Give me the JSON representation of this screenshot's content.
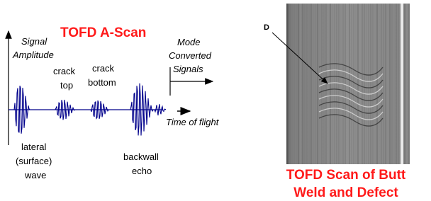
{
  "a_scan": {
    "title": "TOFD A-Scan",
    "y_axis_label": [
      "Signal",
      "Amplitude"
    ],
    "x_axis_label": "Time of flight",
    "crack_top": [
      "crack",
      "top"
    ],
    "crack_bottom": [
      "crack",
      "bottom"
    ],
    "mode_converted": [
      "Mode",
      "Converted",
      "Signals"
    ],
    "lateral_wave": [
      "lateral",
      "(surface)",
      "wave"
    ],
    "backwall_echo": [
      "backwall",
      "echo"
    ]
  },
  "scan": {
    "marker": "D",
    "title": [
      "TOFD Scan of Butt",
      "Weld and Defect"
    ]
  }
}
